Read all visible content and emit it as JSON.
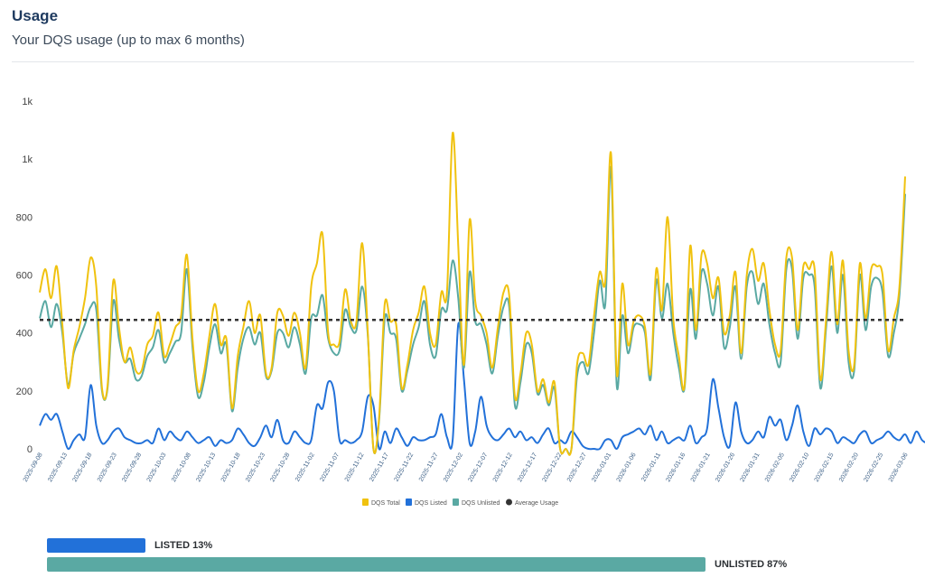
{
  "header": {
    "title": "Usage",
    "subtitle": "Your DQS usage (up to max 6 months)"
  },
  "colors": {
    "total": "#f0c20f",
    "listed": "#2271d9",
    "unlisted": "#5aa9a3",
    "average": "#333333"
  },
  "chart_data": {
    "type": "line",
    "ylim": [
      0,
      1200
    ],
    "yticks": [
      {
        "value": 0,
        "label": "0"
      },
      {
        "value": 200,
        "label": "200"
      },
      {
        "value": 400,
        "label": "400"
      },
      {
        "value": 600,
        "label": "600"
      },
      {
        "value": 800,
        "label": "800"
      },
      {
        "value": 1000,
        "label": "1k"
      },
      {
        "value": 1200,
        "label": "1k"
      }
    ],
    "x_labels": [
      "2025-09-08",
      "2025-09-13",
      "2025-09-18",
      "2025-09-23",
      "2025-09-28",
      "2025-10-03",
      "2025-10-08",
      "2025-10-13",
      "2025-10-18",
      "2025-10-23",
      "2025-10-28",
      "2025-11-02",
      "2025-11-07",
      "2025-11-12",
      "2025-11-17",
      "2025-11-22",
      "2025-11-27",
      "2025-12-02",
      "2025-12-07",
      "2025-12-12",
      "2025-12-17",
      "2025-12-22",
      "2025-12-27",
      "2026-01-01",
      "2026-01-06",
      "2026-01-11",
      "2026-01-16",
      "2026-01-21",
      "2026-01-26",
      "2026-01-31",
      "2026-02-05",
      "2026-02-10",
      "2026-02-15",
      "2026-02-20",
      "2026-02-25",
      "2026-03-06"
    ],
    "average": 445,
    "series": [
      {
        "name": "DQS Total",
        "values": [
          540,
          620,
          520,
          630,
          430,
          210,
          340,
          420,
          520,
          660,
          560,
          210,
          220,
          580,
          420,
          300,
          350,
          270,
          270,
          360,
          390,
          470,
          320,
          360,
          420,
          460,
          670,
          380,
          200,
          260,
          390,
          500,
          360,
          380,
          140,
          320,
          420,
          510,
          400,
          460,
          260,
          280,
          470,
          460,
          390,
          470,
          400,
          280,
          560,
          640,
          740,
          400,
          360,
          370,
          550,
          440,
          440,
          710,
          400,
          0,
          110,
          500,
          440,
          430,
          210,
          290,
          410,
          470,
          560,
          400,
          360,
          540,
          540,
          1090,
          700,
          290,
          790,
          510,
          460,
          400,
          280,
          420,
          540,
          530,
          180,
          260,
          400,
          360,
          200,
          240,
          160,
          230,
          0,
          0,
          0,
          290,
          330,
          290,
          460,
          610,
          580,
          1020,
          260,
          570,
          360,
          440,
          460,
          420,
          260,
          620,
          480,
          800,
          450,
          320,
          220,
          700,
          410,
          670,
          640,
          520,
          590,
          400,
          460,
          610,
          330,
          600,
          690,
          580,
          640,
          480,
          360,
          340,
          660,
          660,
          410,
          630,
          620,
          620,
          240,
          440,
          680,
          430,
          650,
          340,
          290,
          640,
          450,
          620,
          630,
          600,
          340,
          450,
          560,
          940
        ]
      },
      {
        "name": "DQS Listed",
        "values": [
          80,
          120,
          100,
          120,
          60,
          0,
          30,
          50,
          40,
          220,
          80,
          20,
          30,
          60,
          70,
          40,
          30,
          20,
          20,
          30,
          20,
          70,
          30,
          60,
          40,
          30,
          60,
          40,
          20,
          30,
          40,
          10,
          30,
          20,
          30,
          70,
          50,
          20,
          10,
          40,
          80,
          40,
          100,
          30,
          20,
          60,
          40,
          20,
          30,
          150,
          140,
          230,
          200,
          30,
          30,
          20,
          30,
          60,
          180,
          150,
          0,
          60,
          20,
          70,
          40,
          10,
          40,
          30,
          30,
          40,
          50,
          120,
          40,
          30,
          430,
          240,
          20,
          60,
          180,
          80,
          40,
          30,
          50,
          70,
          40,
          60,
          30,
          40,
          20,
          50,
          70,
          20,
          30,
          20,
          60,
          40,
          10,
          0,
          0,
          0,
          30,
          30,
          0,
          40,
          50,
          60,
          70,
          50,
          80,
          30,
          60,
          20,
          30,
          40,
          30,
          80,
          20,
          40,
          70,
          240,
          140,
          40,
          10,
          160,
          60,
          20,
          30,
          60,
          40,
          110,
          80,
          100,
          30,
          80,
          150,
          60,
          10,
          70,
          50,
          70,
          60,
          20,
          40,
          30,
          20,
          50,
          60,
          20,
          30,
          40,
          60,
          40,
          30,
          50,
          20,
          60,
          30,
          20,
          30,
          60
        ]
      },
      {
        "name": "DQS Unlisted",
        "values": [
          450,
          510,
          420,
          500,
          400,
          220,
          330,
          380,
          430,
          490,
          480,
          200,
          210,
          510,
          380,
          300,
          310,
          240,
          250,
          320,
          350,
          410,
          300,
          330,
          370,
          400,
          620,
          350,
          180,
          230,
          350,
          430,
          330,
          360,
          130,
          280,
          380,
          420,
          360,
          400,
          250,
          270,
          400,
          400,
          350,
          420,
          360,
          260,
          450,
          460,
          530,
          380,
          330,
          340,
          480,
          420,
          410,
          560,
          390,
          0,
          100,
          450,
          400,
          380,
          200,
          270,
          360,
          420,
          510,
          360,
          320,
          480,
          480,
          650,
          520,
          280,
          610,
          440,
          430,
          360,
          260,
          390,
          490,
          490,
          150,
          230,
          360,
          330,
          190,
          220,
          150,
          210,
          0,
          0,
          0,
          250,
          300,
          260,
          400,
          580,
          500,
          970,
          220,
          460,
          330,
          420,
          430,
          400,
          240,
          580,
          450,
          570,
          400,
          280,
          210,
          550,
          380,
          610,
          570,
          460,
          560,
          350,
          420,
          560,
          310,
          560,
          610,
          500,
          570,
          430,
          330,
          300,
          620,
          620,
          380,
          590,
          600,
          560,
          210,
          410,
          630,
          400,
          600,
          300,
          270,
          600,
          410,
          560,
          590,
          540,
          320,
          400,
          530,
          880
        ]
      }
    ],
    "legend": [
      {
        "label": "DQS Total"
      },
      {
        "label": "DQS Listed"
      },
      {
        "label": "DQS Unlisted"
      },
      {
        "label": "Average Usage"
      }
    ],
    "legend_position": "bottom",
    "grid": false
  },
  "split": {
    "listed": {
      "label": "LISTED 13%",
      "fraction": 0.13
    },
    "unlisted": {
      "label": "UNLISTED 87%",
      "fraction": 0.87
    }
  }
}
